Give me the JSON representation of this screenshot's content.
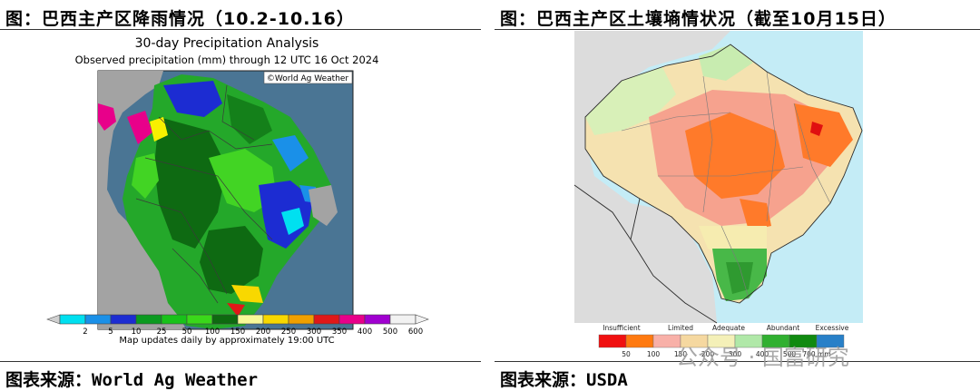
{
  "left": {
    "figure_title": "图：巴西主产区降雨情况（10.2-10.16）",
    "map_title": "30-day Precipitation Analysis",
    "map_subtitle": "Observed precipitation (mm) through 12 UTC 16 Oct 2024",
    "copyright": "©World Ag Weather",
    "legend_ticks": [
      "2",
      "5",
      "10",
      "25",
      "50",
      "100",
      "150",
      "200",
      "250",
      "300",
      "350",
      "400",
      "500",
      "600"
    ],
    "legend_colors": [
      "#00e0f0",
      "#1a90e8",
      "#1c2cd2",
      "#0b9a20",
      "#18c21a",
      "#3ad81a",
      "#0e6a10",
      "#f8f898",
      "#f8d800",
      "#f0a000",
      "#e01818",
      "#e8008a",
      "#a000d0",
      "#f2f2f2"
    ],
    "footer": "Map updates daily by approximately 19:00 UTC",
    "source_prefix": "图表来源：",
    "source_name": "World Ag Weather"
  },
  "right": {
    "figure_title": "图：巴西主产区土壤墒情状况（截至10月15日）",
    "legend_categories": [
      "Insufficient",
      "Limited",
      "Adequate",
      "Abundant",
      "Excessive"
    ],
    "legend_values": [
      "50",
      "100",
      "150",
      "200",
      "300",
      "400",
      "500",
      "700 mm"
    ],
    "legend_colors": [
      "#f01010",
      "#ff7a10",
      "#f8b0a8",
      "#f5d8a0",
      "#f4f0b8",
      "#b0e8a8",
      "#30b030",
      "#108a10",
      "#2880c8"
    ],
    "source_prefix": "图表来源：",
    "source_name": "USDA"
  },
  "watermark": "公众号 · 国富研究"
}
